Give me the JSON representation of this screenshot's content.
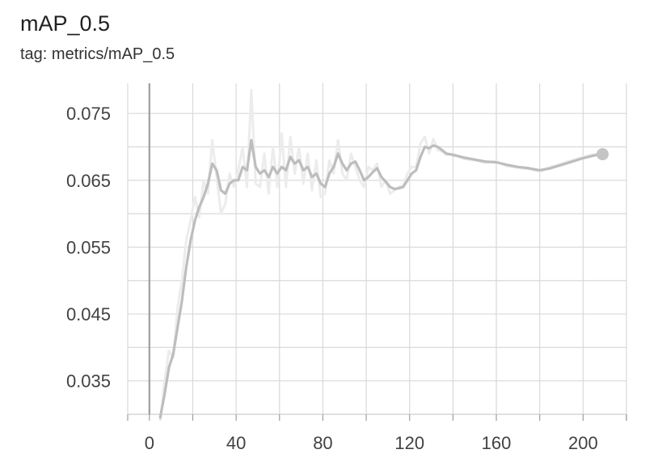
{
  "card": {
    "title": "mAP_0.5",
    "subtitle": "tag: metrics/mAP_0.5"
  },
  "colors": {
    "smoothed_line": "#bdbdbd",
    "raw_line": "#ececec",
    "grid": "#d9d9d9",
    "zero_line": "#9e9e9e",
    "endpoint_marker": "#c4c4c4"
  },
  "chart_data": {
    "type": "line",
    "title": "mAP_0.5",
    "subtitle": "tag: metrics/mAP_0.5",
    "xlim": [
      -10,
      220
    ],
    "ylim": [
      0.03,
      0.0795
    ],
    "x_ticks": [
      0,
      40,
      80,
      120,
      160,
      200
    ],
    "x_tick_labels": [
      "0",
      "40",
      "80",
      "120",
      "160",
      "200"
    ],
    "y_ticks": [
      0.035,
      0.045,
      0.055,
      0.065,
      0.075
    ],
    "y_tick_labels": [
      "0.035",
      "0.045",
      "0.055",
      "0.065",
      "0.075"
    ],
    "grid": true,
    "legend": "none",
    "series": [
      {
        "role": "smoothed",
        "x": [
          5,
          7,
          9,
          11,
          13,
          15,
          17,
          19,
          21,
          23,
          25,
          27,
          29,
          31,
          33,
          35,
          37,
          39,
          41,
          43,
          45,
          47,
          49,
          51,
          53,
          55,
          57,
          59,
          61,
          63,
          65,
          67,
          69,
          71,
          73,
          75,
          77,
          79,
          81,
          83,
          85,
          87,
          89,
          91,
          93,
          95,
          97,
          99,
          101,
          103,
          105,
          107,
          109,
          111,
          113,
          115,
          117,
          119,
          121,
          123,
          125,
          127,
          129,
          131,
          133,
          135,
          137,
          140,
          145,
          150,
          155,
          160,
          165,
          170,
          175,
          180,
          185,
          190,
          195,
          200,
          205,
          209
        ],
        "y": [
          0.0295,
          0.033,
          0.037,
          0.039,
          0.043,
          0.047,
          0.052,
          0.056,
          0.059,
          0.061,
          0.0625,
          0.0645,
          0.0675,
          0.0665,
          0.0635,
          0.063,
          0.0645,
          0.065,
          0.065,
          0.067,
          0.0665,
          0.071,
          0.067,
          0.066,
          0.0665,
          0.0655,
          0.067,
          0.066,
          0.067,
          0.0665,
          0.0685,
          0.0675,
          0.068,
          0.0665,
          0.067,
          0.0655,
          0.066,
          0.0645,
          0.064,
          0.066,
          0.067,
          0.069,
          0.0675,
          0.0665,
          0.0675,
          0.0678,
          0.0665,
          0.065,
          0.0655,
          0.0662,
          0.0668,
          0.0655,
          0.0648,
          0.064,
          0.0637,
          0.0638,
          0.064,
          0.065,
          0.066,
          0.0665,
          0.0685,
          0.07,
          0.0698,
          0.0702,
          0.07,
          0.0695,
          0.069,
          0.0688,
          0.0684,
          0.0681,
          0.0678,
          0.0677,
          0.0673,
          0.067,
          0.0668,
          0.0665,
          0.0668,
          0.0673,
          0.0678,
          0.0683,
          0.0687,
          0.0689
        ]
      },
      {
        "role": "raw",
        "x": [
          5,
          7,
          9,
          11,
          13,
          15,
          17,
          19,
          21,
          23,
          25,
          27,
          29,
          31,
          33,
          35,
          37,
          39,
          41,
          43,
          45,
          47,
          49,
          51,
          53,
          55,
          57,
          59,
          61,
          63,
          65,
          67,
          69,
          71,
          73,
          75,
          77,
          79,
          81,
          83,
          85,
          87,
          89,
          91,
          93,
          95,
          97,
          99,
          101,
          103,
          105,
          107,
          109,
          111,
          113,
          115,
          117,
          119,
          121,
          123,
          125,
          127,
          129,
          131,
          133,
          135,
          137,
          140,
          145,
          150,
          155,
          160,
          165,
          170,
          175,
          180,
          185,
          190,
          195,
          200,
          205,
          209
        ],
        "y": [
          0.029,
          0.035,
          0.0395,
          0.0385,
          0.046,
          0.05,
          0.056,
          0.059,
          0.0625,
          0.0595,
          0.065,
          0.063,
          0.071,
          0.0655,
          0.06,
          0.0615,
          0.066,
          0.064,
          0.0665,
          0.07,
          0.064,
          0.0785,
          0.0645,
          0.064,
          0.069,
          0.063,
          0.07,
          0.064,
          0.072,
          0.064,
          0.0715,
          0.066,
          0.07,
          0.0645,
          0.069,
          0.0635,
          0.068,
          0.0625,
          0.063,
          0.068,
          0.066,
          0.071,
          0.066,
          0.065,
          0.069,
          0.067,
          0.065,
          0.064,
          0.067,
          0.0665,
          0.0675,
          0.064,
          0.065,
          0.063,
          0.0635,
          0.064,
          0.0642,
          0.066,
          0.067,
          0.067,
          0.0705,
          0.0715,
          0.069,
          0.0712,
          0.0695,
          0.0693,
          0.0688,
          0.069,
          0.0682,
          0.068,
          0.0676,
          0.0678,
          0.0671,
          0.0669,
          0.0667,
          0.0663,
          0.067,
          0.0675,
          0.068,
          0.0685,
          0.0689,
          0.069
        ]
      }
    ]
  }
}
